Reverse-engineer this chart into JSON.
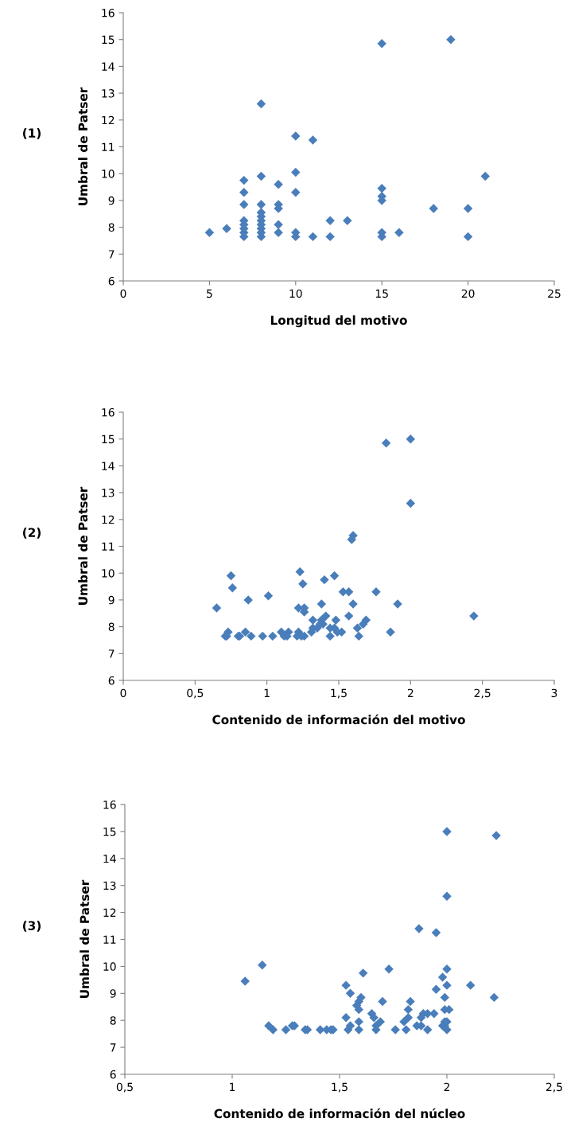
{
  "chart_data": [
    {
      "type": "scatter",
      "ylabel": "Umbral de Patser",
      "xlabel": "Longitud del motivo",
      "annotations": [
        "(1)"
      ],
      "marker": "diamond",
      "grid": false,
      "xlim": [
        0,
        25
      ],
      "xticks": [
        0,
        5,
        10,
        15,
        20,
        25
      ],
      "ylim": [
        6,
        16
      ],
      "yticks": [
        6,
        7,
        8,
        9,
        10,
        11,
        12,
        13,
        14,
        15,
        16
      ],
      "series": [
        {
          "color": "#4a7ebb",
          "x": [
            5,
            6,
            7,
            7,
            7,
            7,
            7,
            7,
            7,
            7,
            8,
            8,
            8,
            8,
            8,
            8,
            8,
            8,
            8,
            8,
            9,
            9,
            9,
            9,
            9,
            10,
            10,
            10,
            10,
            10,
            11,
            11,
            12,
            12,
            13,
            15,
            15,
            15,
            15,
            15,
            15,
            16,
            18,
            19,
            20,
            20,
            21
          ],
          "values": [
            7.8,
            7.95,
            7.65,
            7.8,
            7.95,
            8.1,
            8.25,
            8.85,
            9.3,
            9.75,
            12.6,
            9.9,
            8.85,
            8.55,
            8.4,
            8.25,
            8.1,
            7.95,
            7.8,
            7.65,
            9.6,
            8.85,
            8.7,
            8.1,
            7.8,
            11.4,
            10.05,
            9.3,
            7.8,
            7.65,
            11.25,
            7.65,
            8.25,
            7.65,
            8.25,
            14.85,
            9.45,
            9.15,
            9.0,
            7.8,
            7.65,
            7.8,
            8.7,
            15.0,
            8.7,
            7.65,
            9.9
          ]
        }
      ]
    },
    {
      "type": "scatter",
      "ylabel": "Umbral de Patser",
      "xlabel": "Contenido de información del motivo",
      "annotations": [
        "(2)"
      ],
      "marker": "diamond",
      "grid": false,
      "xlim": [
        0,
        3
      ],
      "xticks": [
        0,
        {
          "value": 0.5,
          "label": "0,5"
        },
        1,
        {
          "value": 1.5,
          "label": "1,5"
        },
        2,
        {
          "value": 2.5,
          "label": "2,5"
        },
        3
      ],
      "ylim": [
        6,
        16
      ],
      "yticks": [
        6,
        7,
        8,
        9,
        10,
        11,
        12,
        13,
        14,
        15,
        16
      ],
      "series": [
        {
          "color": "#4a7ebb",
          "x": [
            0.65,
            0.71,
            0.72,
            0.73,
            0.75,
            0.76,
            0.8,
            0.81,
            0.85,
            0.87,
            0.89,
            0.97,
            1.01,
            1.04,
            1.1,
            1.12,
            1.14,
            1.15,
            1.21,
            1.22,
            1.24,
            1.26,
            1.23,
            1.25,
            1.22,
            1.26,
            1.26,
            1.31,
            1.32,
            1.32,
            1.35,
            1.37,
            1.38,
            1.39,
            1.38,
            1.4,
            1.41,
            1.44,
            1.44,
            1.47,
            1.47,
            1.48,
            1.49,
            1.52,
            1.53,
            1.57,
            1.57,
            1.6,
            1.59,
            1.6,
            1.63,
            1.64,
            1.67,
            1.69,
            1.76,
            1.83,
            1.86,
            1.91,
            2.0,
            2.0,
            2.44
          ],
          "values": [
            8.7,
            7.65,
            7.65,
            7.8,
            9.9,
            9.45,
            7.65,
            7.65,
            7.8,
            9.0,
            7.65,
            7.65,
            9.15,
            7.65,
            7.8,
            7.65,
            7.65,
            7.8,
            7.65,
            7.8,
            7.65,
            7.65,
            10.05,
            9.6,
            8.7,
            8.7,
            8.55,
            7.8,
            8.25,
            7.95,
            7.95,
            8.1,
            8.25,
            8.1,
            8.85,
            9.75,
            8.4,
            7.95,
            7.65,
            7.95,
            9.9,
            8.25,
            7.8,
            7.8,
            9.3,
            9.3,
            8.4,
            8.85,
            11.25,
            11.4,
            7.95,
            7.65,
            8.1,
            8.25,
            9.3,
            14.85,
            7.8,
            8.85,
            15.0,
            12.6,
            8.4
          ]
        }
      ]
    },
    {
      "type": "scatter",
      "ylabel": "Umbral de Patser",
      "xlabel": "Contenido de información del núcleo",
      "annotations": [
        "(3)"
      ],
      "marker": "diamond",
      "grid": false,
      "xlim": [
        0.5,
        2.5
      ],
      "xticks": [
        {
          "value": 0.5,
          "label": "0,5"
        },
        1,
        {
          "value": 1.5,
          "label": "1,5"
        },
        2,
        {
          "value": 2.5,
          "label": "2,5"
        }
      ],
      "ylim": [
        6,
        16
      ],
      "yticks": [
        6,
        7,
        8,
        9,
        10,
        11,
        12,
        13,
        14,
        15,
        16
      ],
      "series": [
        {
          "color": "#4a7ebb",
          "x": [
            1.06,
            1.14,
            1.17,
            1.19,
            1.25,
            1.28,
            1.29,
            1.34,
            1.35,
            1.41,
            1.44,
            1.46,
            1.47,
            1.53,
            1.53,
            1.54,
            1.55,
            1.55,
            1.58,
            1.59,
            1.6,
            1.59,
            1.59,
            1.59,
            1.61,
            1.65,
            1.66,
            1.67,
            1.67,
            1.69,
            1.7,
            1.73,
            1.76,
            1.8,
            1.81,
            1.82,
            1.82,
            1.83,
            1.86,
            1.88,
            1.87,
            1.88,
            1.89,
            1.91,
            1.91,
            1.94,
            1.95,
            1.95,
            1.98,
            1.99,
            1.99,
            1.98,
            1.99,
            2.0,
            1.99,
            2.0,
            2.0,
            2.0,
            2.0,
            2.0,
            2.01,
            2.11,
            2.22,
            2.23
          ],
          "values": [
            9.45,
            10.05,
            7.8,
            7.65,
            7.65,
            7.8,
            7.8,
            7.65,
            7.65,
            7.65,
            7.65,
            7.65,
            7.65,
            8.1,
            9.3,
            7.65,
            7.8,
            9.0,
            8.55,
            8.7,
            8.85,
            8.4,
            7.95,
            7.65,
            9.75,
            8.25,
            8.1,
            7.8,
            7.65,
            7.95,
            8.7,
            9.9,
            7.65,
            7.95,
            7.65,
            8.1,
            8.4,
            8.7,
            7.8,
            7.8,
            11.4,
            8.1,
            8.25,
            8.25,
            7.65,
            8.25,
            11.25,
            9.15,
            9.6,
            8.85,
            8.4,
            7.8,
            7.95,
            7.95,
            7.8,
            7.65,
            9.9,
            9.3,
            12.6,
            15.0,
            8.4,
            9.3,
            8.85,
            14.85
          ]
        }
      ]
    }
  ]
}
